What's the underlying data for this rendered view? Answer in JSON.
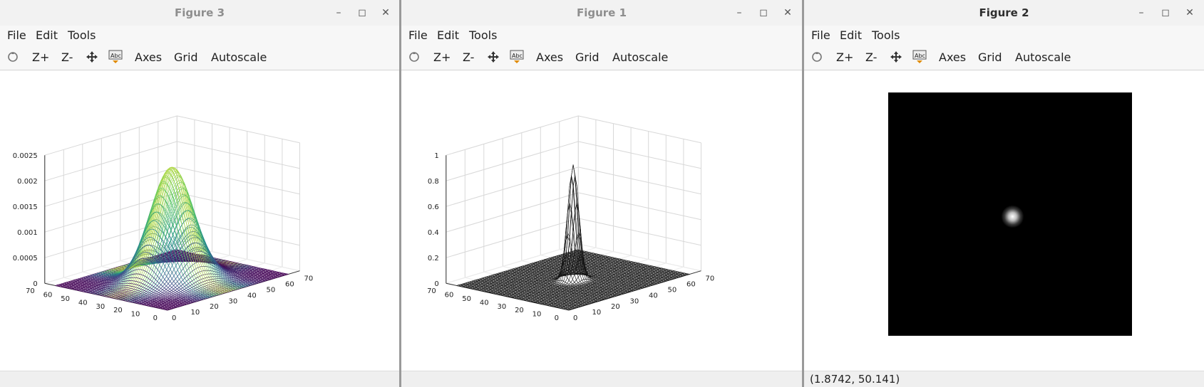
{
  "menus": [
    "File",
    "Edit",
    "Tools"
  ],
  "toolbar": {
    "zoom_in": "Z+",
    "zoom_out": "Z-",
    "axes": "Axes",
    "grid": "Grid",
    "autoscale": "Autoscale"
  },
  "icons": [
    "rotate-icon",
    "pan-icon",
    "text-tool-icon",
    "minimize-icon",
    "maximize-icon",
    "close-icon"
  ],
  "windows": [
    {
      "title": "Figure 3",
      "active": false
    },
    {
      "title": "Figure 1",
      "active": false
    },
    {
      "title": "Figure 2",
      "active": true,
      "status": "(1.8742, 50.141)"
    }
  ],
  "chart_data": [
    {
      "type": "surface",
      "figure": "Figure 3",
      "colormap": "viridis",
      "x_ticks": [
        "0",
        "10",
        "20",
        "30",
        "40",
        "50",
        "60",
        "70"
      ],
      "y_ticks": [
        "0",
        "10",
        "20",
        "30",
        "40",
        "50",
        "60",
        "70"
      ],
      "z_ticks": [
        "0",
        "0.0005",
        "0.001",
        "0.0015",
        "0.002",
        "0.0025"
      ],
      "xlim": [
        0,
        70
      ],
      "ylim": [
        0,
        70
      ],
      "zlim": [
        0,
        0.0025
      ],
      "peak": {
        "x": 32,
        "y": 32,
        "z": 0.0022
      },
      "grid": true
    },
    {
      "type": "surface",
      "figure": "Figure 1",
      "colormap": "black wireframe",
      "x_ticks": [
        "0",
        "10",
        "20",
        "30",
        "40",
        "50",
        "60",
        "70"
      ],
      "y_ticks": [
        "0",
        "10",
        "20",
        "30",
        "40",
        "50",
        "60",
        "70"
      ],
      "z_ticks": [
        "0",
        "0.2",
        "0.4",
        "0.6",
        "0.8",
        "1"
      ],
      "xlim": [
        0,
        70
      ],
      "ylim": [
        0,
        70
      ],
      "zlim": [
        0,
        1
      ],
      "peak": {
        "x": 32,
        "y": 32,
        "z": 0.9
      },
      "grid": true
    },
    {
      "type": "heatmap",
      "figure": "Figure 2",
      "colormap": "gray",
      "background": "#000000",
      "spot": {
        "x": 0.51,
        "y": 0.51,
        "value": 1
      }
    }
  ]
}
